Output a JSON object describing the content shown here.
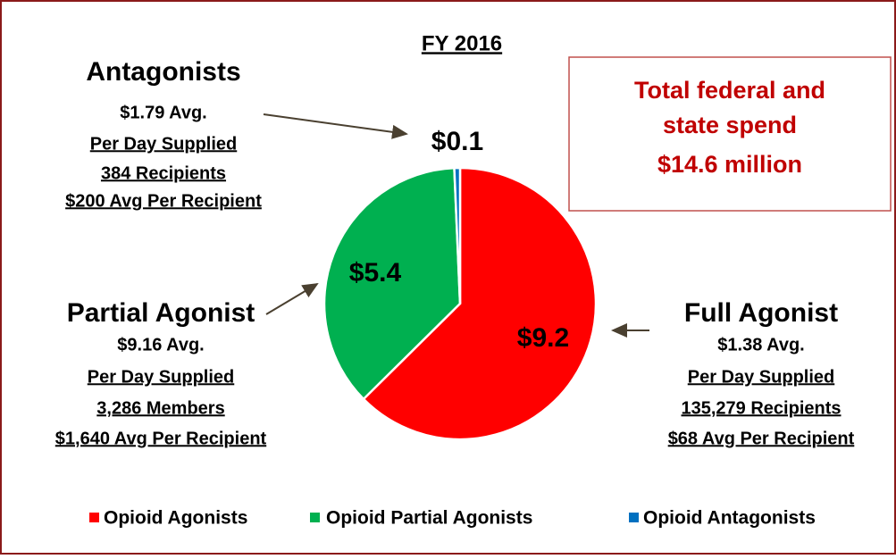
{
  "chart_data": {
    "type": "pie",
    "title": "FY 2016",
    "categories": [
      "Opioid Agonists",
      "Opioid Partial Agonists",
      "Opioid Antagonists"
    ],
    "values": [
      9.2,
      5.4,
      0.1
    ],
    "value_labels": [
      "$9.2",
      "$5.4",
      "$0.1"
    ],
    "colors": [
      "#ff0000",
      "#00b050",
      "#0070c0"
    ],
    "legend": "bottom",
    "total_box": [
      "Total federal and",
      "state spend",
      "$14.6 million"
    ],
    "callouts": [
      {
        "title": "Full Agonist",
        "lines": [
          "$1.38 Avg.",
          "Per Day Supplied",
          "135,279 Recipients",
          "$68 Avg Per Recipient"
        ]
      },
      {
        "title": "Partial Agonist",
        "lines": [
          "$9.16 Avg.",
          "Per Day Supplied",
          "3,286 Members",
          "$1,640 Avg Per Recipient"
        ]
      },
      {
        "title": "Antagonists",
        "lines": [
          "$1.79 Avg.",
          "Per Day Supplied",
          "384 Recipients",
          "$200 Avg Per Recipient"
        ]
      }
    ]
  }
}
